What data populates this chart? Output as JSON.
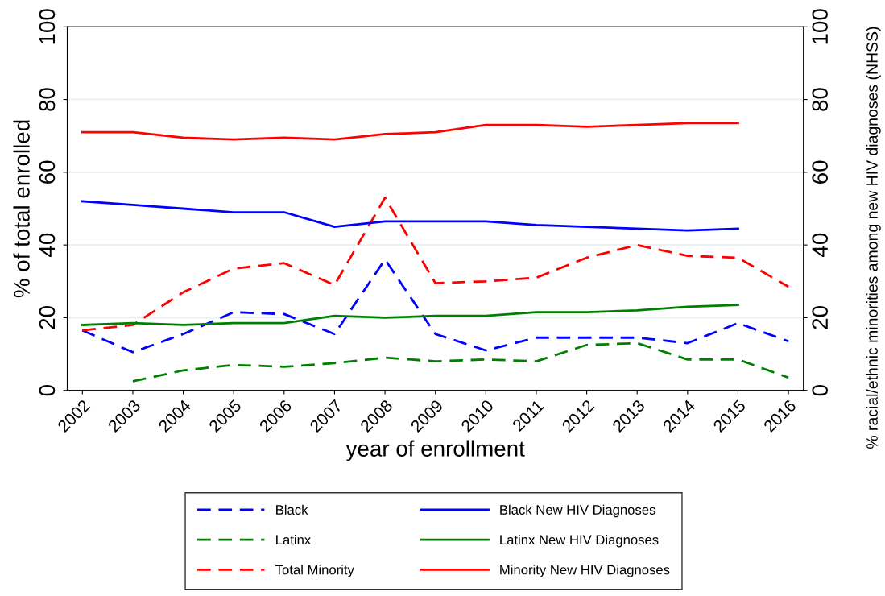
{
  "chart_data": {
    "type": "line",
    "xlabel": "year of enrollment",
    "ylabel": "% of total enrolled",
    "y2label": "% racial/ethnic minorities among new HIV diagnoses (NHSS)",
    "categories": [
      "2002",
      "2003",
      "2004",
      "2005",
      "2006",
      "2007",
      "2008",
      "2009",
      "2010",
      "2011",
      "2012",
      "2013",
      "2014",
      "2015",
      "2016"
    ],
    "series": [
      {
        "name": "Black",
        "color": "#0000ff",
        "line_style": "dashed",
        "values": [
          16.5,
          10.5,
          15.5,
          21.5,
          21,
          15.5,
          36,
          15.5,
          11,
          14.5,
          14.5,
          14.5,
          13,
          18.5,
          13.5
        ]
      },
      {
        "name": "Black New HIV Diagnoses",
        "color": "#0000ff",
        "line_style": "solid",
        "axis": "y2",
        "values": [
          52,
          51,
          50,
          49,
          49,
          45,
          46.5,
          46.5,
          46.5,
          45.5,
          45,
          44.5,
          44,
          44.5,
          null
        ]
      },
      {
        "name": "Latinx",
        "color": "#008000",
        "line_style": "dashed",
        "values": [
          null,
          2.5,
          5.5,
          7,
          6.5,
          7.5,
          9,
          8,
          8.5,
          8,
          12.5,
          13,
          8.5,
          8.5,
          3.5
        ]
      },
      {
        "name": "Latinx New HIV Diagnoses",
        "color": "#008000",
        "line_style": "solid",
        "axis": "y2",
        "values": [
          18,
          18.5,
          18,
          18.5,
          18.5,
          20.5,
          20,
          20.5,
          20.5,
          21.5,
          21.5,
          22,
          23,
          23.5,
          null
        ]
      },
      {
        "name": "Total Minority",
        "color": "#ff0000",
        "line_style": "dashed",
        "values": [
          16.5,
          18,
          27,
          33.5,
          35,
          29,
          53,
          29.5,
          30,
          31,
          36.5,
          40,
          37,
          36.5,
          28.5
        ]
      },
      {
        "name": "Minority New HIV Diagnoses",
        "color": "#ff0000",
        "line_style": "solid",
        "axis": "y2",
        "values": [
          71,
          71,
          69.5,
          69,
          69.5,
          69,
          70.5,
          71,
          73,
          73,
          72.5,
          73,
          73.5,
          73.5,
          null
        ]
      }
    ],
    "ylim": [
      0,
      100
    ],
    "yticks": [
      0,
      20,
      40,
      60,
      80,
      100
    ],
    "y2lim": [
      0,
      100
    ],
    "y2ticks": [
      0,
      20,
      40,
      60,
      80,
      100
    ],
    "grid": "y",
    "legend": "bottom",
    "marker": "none"
  }
}
